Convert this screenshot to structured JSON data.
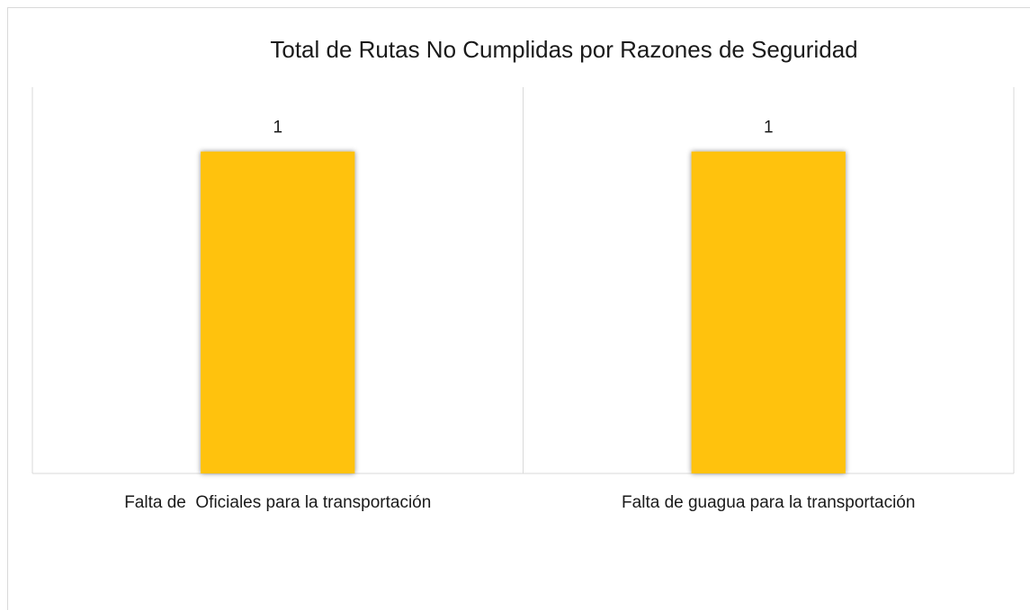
{
  "chart_data": {
    "type": "bar",
    "title": "Total de Rutas No Cumplidas por Razones de Seguridad",
    "categories": [
      "Falta de  Oficiales para la transportación",
      "Falta de guagua para la transportación"
    ],
    "values": [
      1,
      1
    ],
    "color": "#ffc20e",
    "ylim": [
      0,
      1.2
    ]
  }
}
